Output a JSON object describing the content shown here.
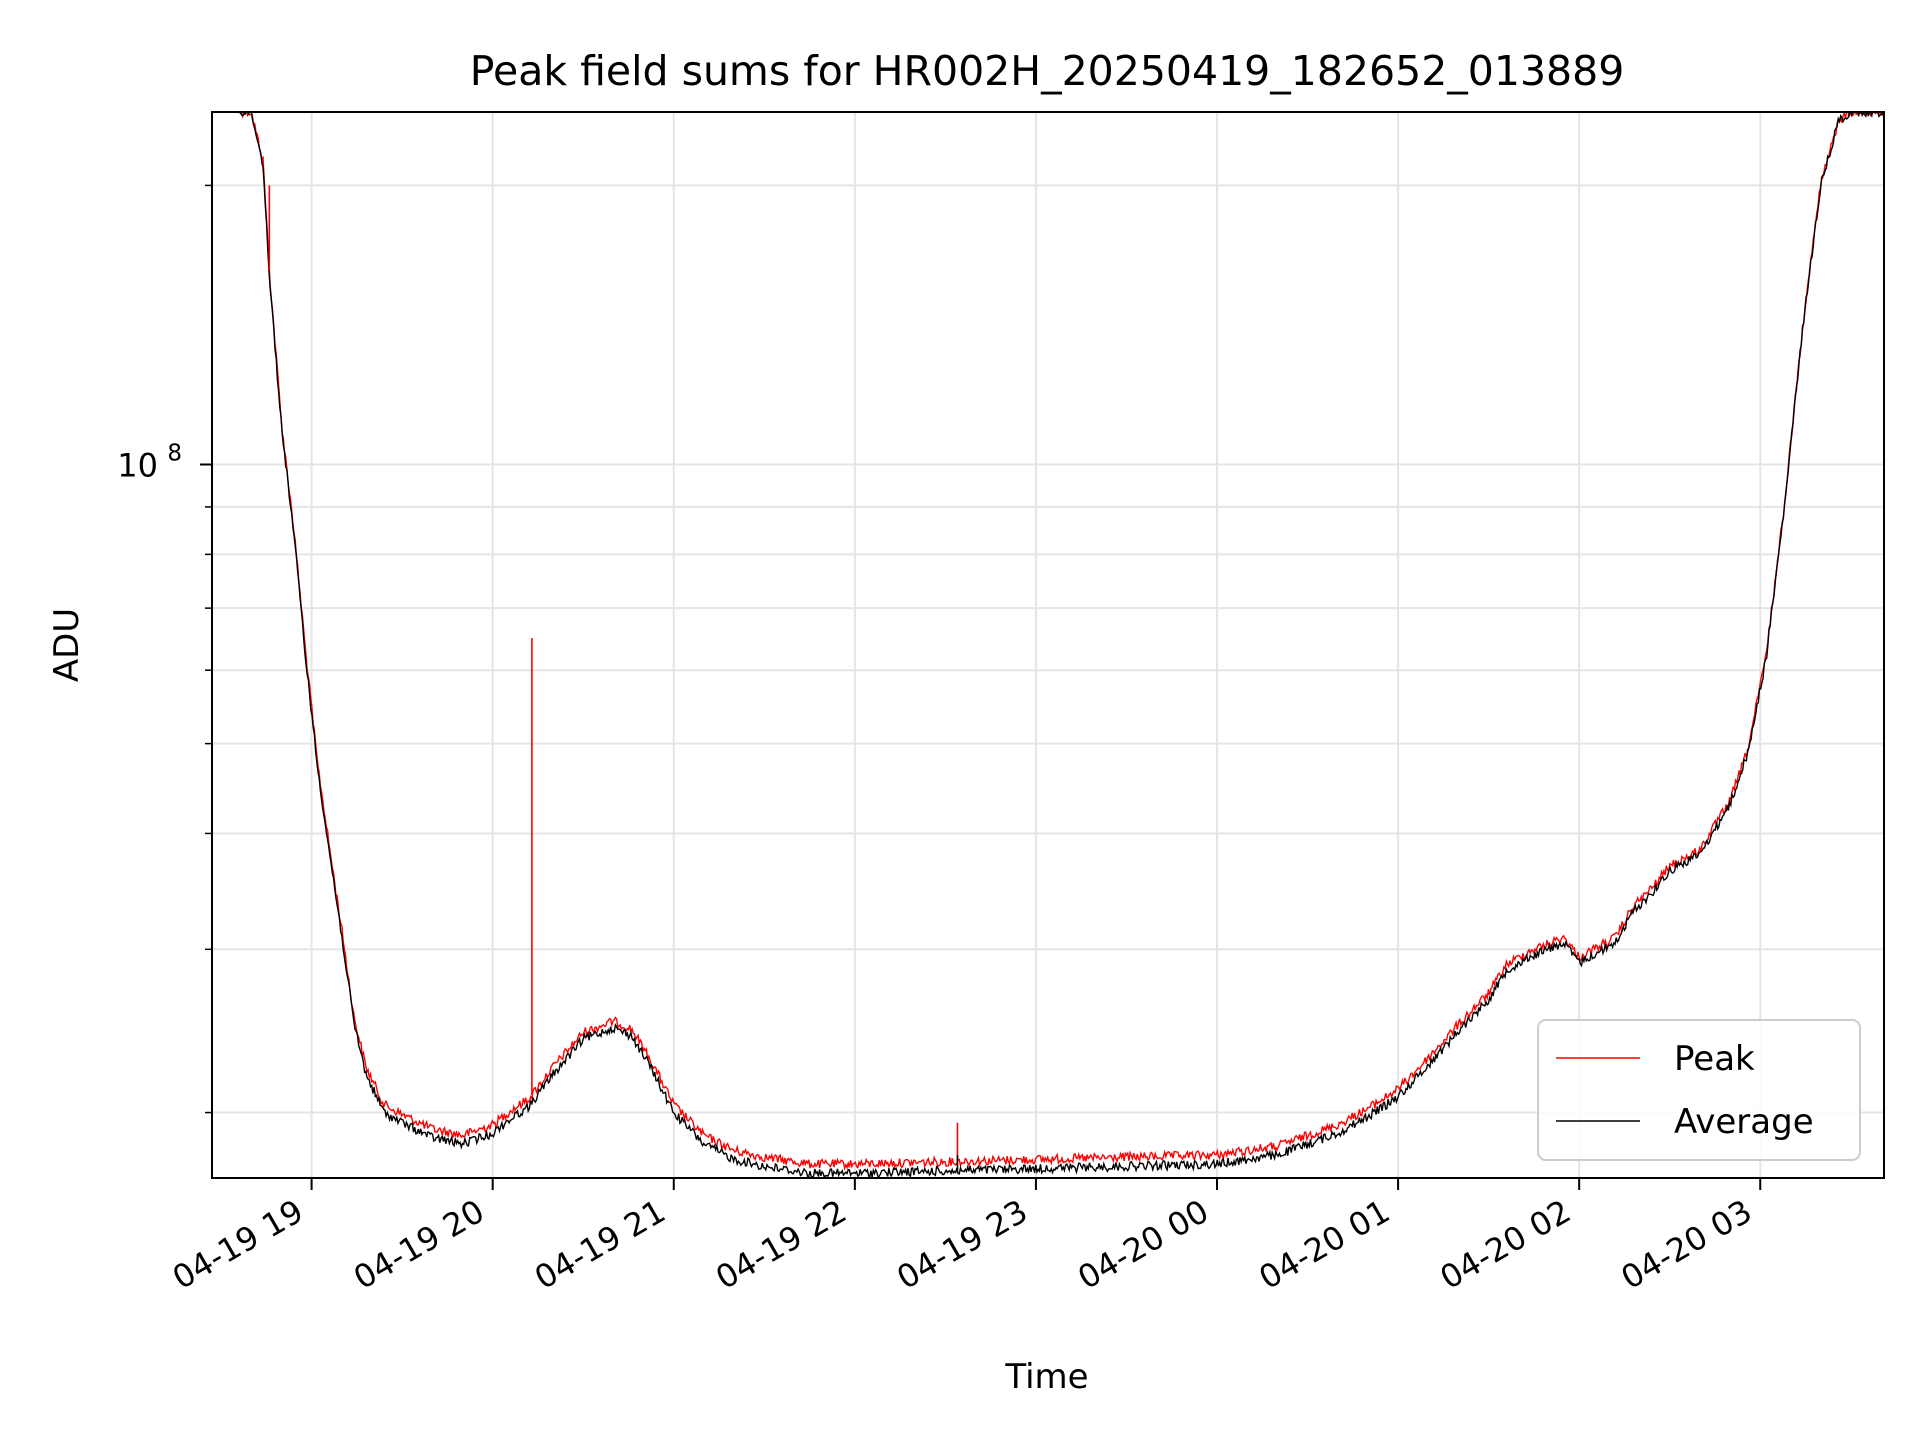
{
  "chart_data": {
    "type": "line",
    "title": "Peak field sums for HR002H_20250419_182652_013889",
    "xlabel": "Time",
    "ylabel": "ADU",
    "yscale": "log",
    "grid": true,
    "grid_minor": true,
    "legend_position": "lower-right",
    "xlim": [
      "2025-04-19 18:27",
      "2025-04-20 03:41"
    ],
    "ylim": [
      17000000,
      240000000
    ],
    "x_ticks": [
      {
        "label": "04-19 19",
        "t": "2025-04-19 19:00"
      },
      {
        "label": "04-19 20",
        "t": "2025-04-19 20:00"
      },
      {
        "label": "04-19 21",
        "t": "2025-04-19 21:00"
      },
      {
        "label": "04-19 22",
        "t": "2025-04-19 22:00"
      },
      {
        "label": "04-19 23",
        "t": "2025-04-19 23:00"
      },
      {
        "label": "04-20 00",
        "t": "2025-04-20 00:00"
      },
      {
        "label": "04-20 01",
        "t": "2025-04-20 01:00"
      },
      {
        "label": "04-20 02",
        "t": "2025-04-20 02:00"
      },
      {
        "label": "04-20 03",
        "t": "2025-04-20 03:00"
      }
    ],
    "y_major_ticks": [
      {
        "label_base": "10",
        "label_exp": "8",
        "value": 100000000
      }
    ],
    "y_minor_ticks": [
      20000000,
      30000000,
      40000000,
      50000000,
      60000000,
      70000000,
      80000000,
      90000000,
      200000000
    ],
    "colors": {
      "Peak": "#ff0000",
      "Average": "#000000"
    },
    "series": [
      {
        "name": "Average",
        "x": [
          "2025-04-19 18:36",
          "2025-04-19 18:40",
          "2025-04-19 18:44",
          "2025-04-19 18:46",
          "2025-04-19 18:50",
          "2025-04-19 18:54",
          "2025-04-19 18:58",
          "2025-04-19 19:02",
          "2025-04-19 19:06",
          "2025-04-19 19:10",
          "2025-04-19 19:14",
          "2025-04-19 19:18",
          "2025-04-19 19:24",
          "2025-04-19 19:30",
          "2025-04-19 19:40",
          "2025-04-19 19:50",
          "2025-04-19 20:00",
          "2025-04-19 20:06",
          "2025-04-19 20:12",
          "2025-04-19 20:20",
          "2025-04-19 20:30",
          "2025-04-19 20:40",
          "2025-04-19 20:46",
          "2025-04-19 20:52",
          "2025-04-19 21:00",
          "2025-04-19 21:10",
          "2025-04-19 21:20",
          "2025-04-19 21:30",
          "2025-04-19 21:45",
          "2025-04-19 22:00",
          "2025-04-19 22:30",
          "2025-04-19 23:00",
          "2025-04-19 23:30",
          "2025-04-20 00:00",
          "2025-04-20 00:20",
          "2025-04-20 00:40",
          "2025-04-20 00:50",
          "2025-04-20 01:00",
          "2025-04-20 01:10",
          "2025-04-20 01:20",
          "2025-04-20 01:30",
          "2025-04-20 01:36",
          "2025-04-20 01:44",
          "2025-04-20 01:55",
          "2025-04-20 02:00",
          "2025-04-20 02:04",
          "2025-04-20 02:08",
          "2025-04-20 02:12",
          "2025-04-20 02:18",
          "2025-04-20 02:24",
          "2025-04-20 02:30",
          "2025-04-20 02:40",
          "2025-04-20 02:50",
          "2025-04-20 02:56",
          "2025-04-20 03:02",
          "2025-04-20 03:08",
          "2025-04-20 03:14",
          "2025-04-20 03:20",
          "2025-04-20 03:26",
          "2025-04-20 03:30",
          "2025-04-20 03:41"
        ],
        "values": [
          240000000,
          240000000,
          210000000,
          160000000,
          110000000,
          85000000,
          62000000,
          47000000,
          38000000,
          31000000,
          25000000,
          22000000,
          20000000,
          19500000,
          18800000,
          18500000,
          19000000,
          19700000,
          20300000,
          22000000,
          24000000,
          24700000,
          24200000,
          22500000,
          20000000,
          18500000,
          17800000,
          17500000,
          17200000,
          17200000,
          17300000,
          17400000,
          17500000,
          17600000,
          18000000,
          19000000,
          19800000,
          20800000,
          22500000,
          24500000,
          26500000,
          28500000,
          29500000,
          30500000,
          29000000,
          29500000,
          30000000,
          30500000,
          33000000,
          34500000,
          36500000,
          38000000,
          43000000,
          49000000,
          62000000,
          90000000,
          140000000,
          200000000,
          235000000,
          240000000,
          240000000
        ]
      },
      {
        "name": "Peak",
        "x": [
          "2025-04-19 18:36",
          "2025-04-19 18:40",
          "2025-04-19 18:44",
          "2025-04-19 18:46",
          "2025-04-19 18:50",
          "2025-04-19 18:54",
          "2025-04-19 18:58",
          "2025-04-19 19:02",
          "2025-04-19 19:06",
          "2025-04-19 19:10",
          "2025-04-19 19:14",
          "2025-04-19 19:18",
          "2025-04-19 19:24",
          "2025-04-19 19:30",
          "2025-04-19 19:40",
          "2025-04-19 19:50",
          "2025-04-19 20:00",
          "2025-04-19 20:06",
          "2025-04-19 20:12",
          "2025-04-19 20:20",
          "2025-04-19 20:30",
          "2025-04-19 20:40",
          "2025-04-19 20:46",
          "2025-04-19 20:52",
          "2025-04-19 21:00",
          "2025-04-19 21:10",
          "2025-04-19 21:20",
          "2025-04-19 21:30",
          "2025-04-19 21:45",
          "2025-04-19 22:00",
          "2025-04-19 22:30",
          "2025-04-19 23:00",
          "2025-04-19 23:30",
          "2025-04-20 00:00",
          "2025-04-20 00:20",
          "2025-04-20 00:40",
          "2025-04-20 00:50",
          "2025-04-20 01:00",
          "2025-04-20 01:10",
          "2025-04-20 01:20",
          "2025-04-20 01:30",
          "2025-04-20 01:36",
          "2025-04-20 01:44",
          "2025-04-20 01:55",
          "2025-04-20 02:00",
          "2025-04-20 02:04",
          "2025-04-20 02:08",
          "2025-04-20 02:12",
          "2025-04-20 02:18",
          "2025-04-20 02:24",
          "2025-04-20 02:30",
          "2025-04-20 02:40",
          "2025-04-20 02:50",
          "2025-04-20 02:56",
          "2025-04-20 03:02",
          "2025-04-20 03:08",
          "2025-04-20 03:14",
          "2025-04-20 03:20",
          "2025-04-20 03:26",
          "2025-04-20 03:30",
          "2025-04-20 03:41"
        ],
        "values": [
          240000000,
          240000000,
          212000000,
          162000000,
          111000000,
          86000000,
          63000000,
          47500000,
          38500000,
          31500000,
          25400000,
          22400000,
          20400000,
          19900000,
          19200000,
          18900000,
          19400000,
          20100000,
          20700000,
          22400000,
          24400000,
          25100000,
          24600000,
          22900000,
          20400000,
          18900000,
          18200000,
          17900000,
          17600000,
          17600000,
          17700000,
          17800000,
          17900000,
          18000000,
          18400000,
          19400000,
          20200000,
          21200000,
          22900000,
          24900000,
          26900000,
          28900000,
          29900000,
          30900000,
          29400000,
          29900000,
          30400000,
          30900000,
          33400000,
          34900000,
          36900000,
          38400000,
          43400000,
          49400000,
          62500000,
          90500000,
          140500000,
          200500000,
          235000000,
          240000000,
          240000000
        ]
      }
    ],
    "spikes": [
      {
        "series": "Peak",
        "x": "2025-04-19 18:46",
        "value": 200000000
      },
      {
        "series": "Peak",
        "x": "2025-04-19 20:13",
        "value": 65000000
      },
      {
        "series": "Average",
        "x": "2025-04-19 20:13",
        "value": 20500000
      },
      {
        "series": "Peak",
        "x": "2025-04-19 22:34",
        "value": 19500000
      },
      {
        "series": "Average",
        "x": "2025-04-19 22:34",
        "value": 18000000
      }
    ]
  }
}
